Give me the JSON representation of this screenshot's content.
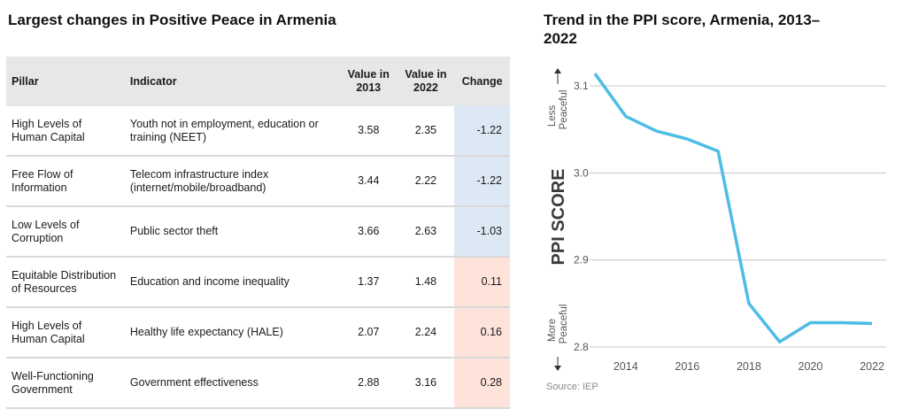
{
  "left_panel": {
    "title": "Largest changes in Positive Peace in Armenia",
    "columns": [
      "Pillar",
      "Indicator",
      "Value in 2013",
      "Value in 2022",
      "Change"
    ],
    "column_lines": [
      [
        "Pillar"
      ],
      [
        "Indicator"
      ],
      [
        "Value in",
        "2013"
      ],
      [
        "Value in",
        "2022"
      ],
      [
        "Change"
      ]
    ],
    "rows": [
      {
        "pillar": "High Levels of Human Capital",
        "indicator": "Youth not in employment, education or training (NEET)",
        "v2013": "3.58",
        "v2022": "2.35",
        "change": "-1.22",
        "direction": "improved"
      },
      {
        "pillar": "Free Flow of Information",
        "indicator": "Telecom infrastructure index (internet/mobile/broadband)",
        "v2013": "3.44",
        "v2022": "2.22",
        "change": "-1.22",
        "direction": "improved"
      },
      {
        "pillar": "Low Levels of Corruption",
        "indicator": "Public sector theft",
        "v2013": "3.66",
        "v2022": "2.63",
        "change": "-1.03",
        "direction": "improved"
      },
      {
        "pillar": "Equitable Distribution of Resources",
        "indicator": "Education and income inequality",
        "v2013": "1.37",
        "v2022": "1.48",
        "change": "0.11",
        "direction": "deteriorated"
      },
      {
        "pillar": "High Levels of Human Capital",
        "indicator": "Healthy life expectancy (HALE)",
        "v2013": "2.07",
        "v2022": "2.24",
        "change": "0.16",
        "direction": "deteriorated"
      },
      {
        "pillar": "Well-Functioning Government",
        "indicator": "Government effectiveness",
        "v2013": "2.88",
        "v2022": "3.16",
        "change": "0.28",
        "direction": "deteriorated"
      }
    ],
    "colors": {
      "improved": "#dde8f5",
      "deteriorated": "#fde3d9",
      "header": "#e6e7e8"
    }
  },
  "right_panel": {
    "title": "Trend in the PPI score, Armenia, 2013–2022",
    "source": "Source: IEP"
  },
  "chart_data": {
    "type": "line",
    "title": "Trend in the PPI score, Armenia, 2013–2022",
    "xlabel": "",
    "ylabel": "PPI SCORE",
    "y_annotation_top": "Less Peaceful",
    "y_annotation_bottom": "More Peaceful",
    "x": [
      2013,
      2014,
      2015,
      2016,
      2017,
      2018,
      2019,
      2020,
      2021,
      2022
    ],
    "series": [
      {
        "name": "Armenia",
        "color": "#4dbde6",
        "values": [
          3.114,
          3.065,
          3.048,
          3.039,
          3.025,
          2.85,
          2.806,
          2.828,
          2.828,
          2.827
        ]
      }
    ],
    "x_ticks": [
      2014,
      2016,
      2018,
      2020,
      2022
    ],
    "y_ticks": [
      2.8,
      2.9,
      3.0,
      3.1
    ],
    "y_tick_labels": [
      "2.8",
      "2.9",
      "3.0",
      "3.1"
    ],
    "xlim": [
      2013,
      2022
    ],
    "ylim": [
      2.8,
      3.1
    ],
    "grid": "horizontal",
    "legend": "none",
    "source": "Source: IEP"
  }
}
